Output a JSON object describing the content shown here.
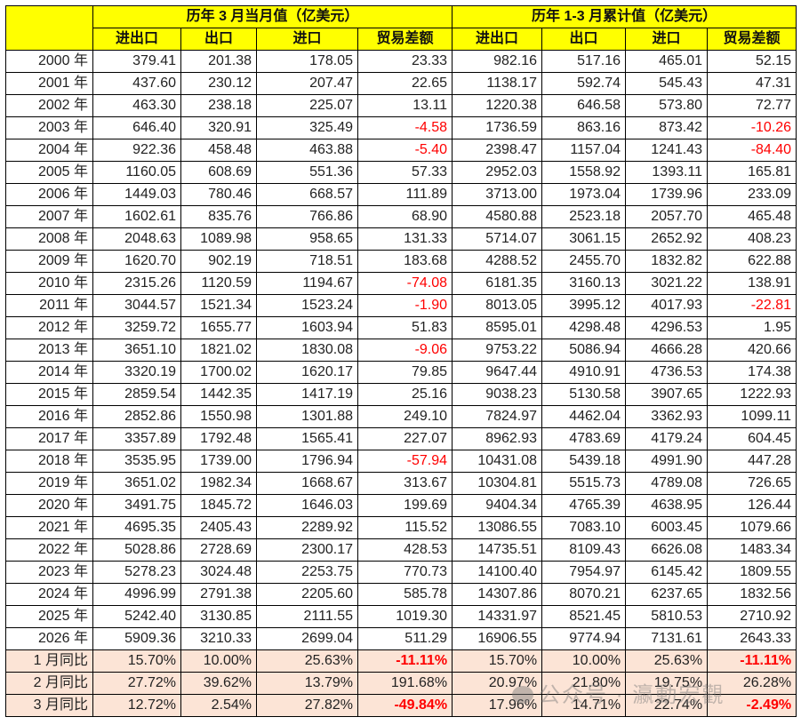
{
  "header": {
    "group_monthly": "历年 3 月当月值（亿美元）",
    "group_cumulative": "历年 1-3 月累计值（亿美元）",
    "columns": [
      "进出口",
      "出口",
      "进口",
      "贸易差额",
      "进出口",
      "出口",
      "进口",
      "贸易差额"
    ]
  },
  "colors": {
    "header_bg": "#ffff00",
    "yoy_bg": "#fce4d6",
    "negative": "#ff0000"
  },
  "rows": [
    {
      "label": "2000 年",
      "cells": [
        "379.41",
        "201.38",
        "178.05",
        "23.33",
        "982.16",
        "517.16",
        "465.01",
        "52.15"
      ]
    },
    {
      "label": "2001 年",
      "cells": [
        "437.60",
        "230.12",
        "207.47",
        "22.65",
        "1138.17",
        "592.74",
        "545.43",
        "47.31"
      ]
    },
    {
      "label": "2002 年",
      "cells": [
        "463.30",
        "238.18",
        "225.07",
        "13.11",
        "1220.38",
        "646.58",
        "573.80",
        "72.77"
      ]
    },
    {
      "label": "2003 年",
      "cells": [
        "646.40",
        "320.91",
        "325.49",
        "-4.58",
        "1736.59",
        "863.16",
        "873.42",
        "-10.26"
      ]
    },
    {
      "label": "2004 年",
      "cells": [
        "922.36",
        "458.48",
        "463.88",
        "-5.40",
        "2398.47",
        "1157.04",
        "1241.43",
        "-84.40"
      ]
    },
    {
      "label": "2005 年",
      "cells": [
        "1160.05",
        "608.69",
        "551.36",
        "57.33",
        "2952.03",
        "1558.92",
        "1393.11",
        "165.81"
      ]
    },
    {
      "label": "2006 年",
      "cells": [
        "1449.03",
        "780.46",
        "668.57",
        "111.89",
        "3713.00",
        "1973.04",
        "1739.96",
        "233.09"
      ]
    },
    {
      "label": "2007 年",
      "cells": [
        "1602.61",
        "835.76",
        "766.86",
        "68.90",
        "4580.88",
        "2523.18",
        "2057.70",
        "465.48"
      ]
    },
    {
      "label": "2008 年",
      "cells": [
        "2048.63",
        "1089.98",
        "958.65",
        "131.33",
        "5714.07",
        "3061.15",
        "2652.92",
        "408.23"
      ]
    },
    {
      "label": "2009 年",
      "cells": [
        "1620.70",
        "902.19",
        "718.51",
        "183.68",
        "4288.52",
        "2455.70",
        "1832.82",
        "622.88"
      ]
    },
    {
      "label": "2010 年",
      "cells": [
        "2315.26",
        "1120.59",
        "1194.67",
        "-74.08",
        "6181.35",
        "3160.13",
        "3021.22",
        "138.91"
      ]
    },
    {
      "label": "2011 年",
      "cells": [
        "3044.57",
        "1521.34",
        "1523.24",
        "-1.90",
        "8013.05",
        "3995.12",
        "4017.93",
        "-22.81"
      ]
    },
    {
      "label": "2012 年",
      "cells": [
        "3259.72",
        "1655.77",
        "1603.94",
        "51.83",
        "8595.01",
        "4298.48",
        "4296.53",
        "1.95"
      ]
    },
    {
      "label": "2013 年",
      "cells": [
        "3651.10",
        "1821.02",
        "1830.08",
        "-9.06",
        "9753.22",
        "5086.94",
        "4666.28",
        "420.66"
      ]
    },
    {
      "label": "2014 年",
      "cells": [
        "3320.19",
        "1700.02",
        "1620.17",
        "79.85",
        "9647.44",
        "4910.91",
        "4736.53",
        "174.38"
      ]
    },
    {
      "label": "2015 年",
      "cells": [
        "2859.54",
        "1442.35",
        "1417.19",
        "25.16",
        "9038.23",
        "5130.58",
        "3907.65",
        "1222.93"
      ]
    },
    {
      "label": "2016 年",
      "cells": [
        "2852.86",
        "1550.98",
        "1301.88",
        "249.10",
        "7824.97",
        "4462.04",
        "3362.93",
        "1099.11"
      ]
    },
    {
      "label": "2017 年",
      "cells": [
        "3357.89",
        "1792.48",
        "1565.41",
        "227.07",
        "8962.93",
        "4783.69",
        "4179.24",
        "604.45"
      ]
    },
    {
      "label": "2018 年",
      "cells": [
        "3535.95",
        "1739.00",
        "1796.94",
        "-57.94",
        "10431.08",
        "5439.18",
        "4991.90",
        "447.28"
      ]
    },
    {
      "label": "2019 年",
      "cells": [
        "3651.02",
        "1982.34",
        "1668.67",
        "313.67",
        "10304.81",
        "5515.73",
        "4789.08",
        "726.65"
      ]
    },
    {
      "label": "2020 年",
      "cells": [
        "3491.75",
        "1845.72",
        "1646.03",
        "199.69",
        "9404.34",
        "4765.39",
        "4638.95",
        "126.44"
      ]
    },
    {
      "label": "2021 年",
      "cells": [
        "4695.35",
        "2405.43",
        "2289.92",
        "115.52",
        "13086.55",
        "7083.10",
        "6003.45",
        "1079.66"
      ]
    },
    {
      "label": "2022 年",
      "cells": [
        "5028.86",
        "2728.69",
        "2300.17",
        "428.53",
        "14735.51",
        "8109.43",
        "6626.08",
        "1483.34"
      ]
    },
    {
      "label": "2023 年",
      "cells": [
        "5278.23",
        "3024.48",
        "2253.75",
        "770.73",
        "14100.40",
        "7954.97",
        "6145.42",
        "1809.55"
      ]
    },
    {
      "label": "2024 年",
      "cells": [
        "4996.99",
        "2791.38",
        "2205.60",
        "585.78",
        "14307.86",
        "8070.21",
        "6237.65",
        "1832.56"
      ]
    },
    {
      "label": "2025 年",
      "cells": [
        "5242.40",
        "3130.85",
        "2111.55",
        "1019.30",
        "14331.97",
        "8521.45",
        "5810.53",
        "2710.92"
      ]
    },
    {
      "label": "2026 年",
      "cells": [
        "5909.36",
        "3210.33",
        "2699.04",
        "511.29",
        "16906.55",
        "9774.94",
        "7131.61",
        "2643.33"
      ]
    }
  ],
  "yoy_rows": [
    {
      "label": "1 月同比",
      "cells": [
        "15.70%",
        "10.00%",
        "25.63%",
        "-11.11%",
        "15.70%",
        "10.00%",
        "25.63%",
        "-11.11%"
      ]
    },
    {
      "label": "2 月同比",
      "cells": [
        "27.72%",
        "39.62%",
        "13.79%",
        "191.68%",
        "20.97%",
        "21.80%",
        "19.75%",
        "26.28%"
      ]
    },
    {
      "label": "3 月同比",
      "cells": [
        "12.72%",
        "2.54%",
        "27.82%",
        "-49.84%",
        "17.96%",
        "14.71%",
        "22.74%",
        "-2.49%"
      ]
    }
  ],
  "watermark": "公众号 · 瀛動宏觀"
}
